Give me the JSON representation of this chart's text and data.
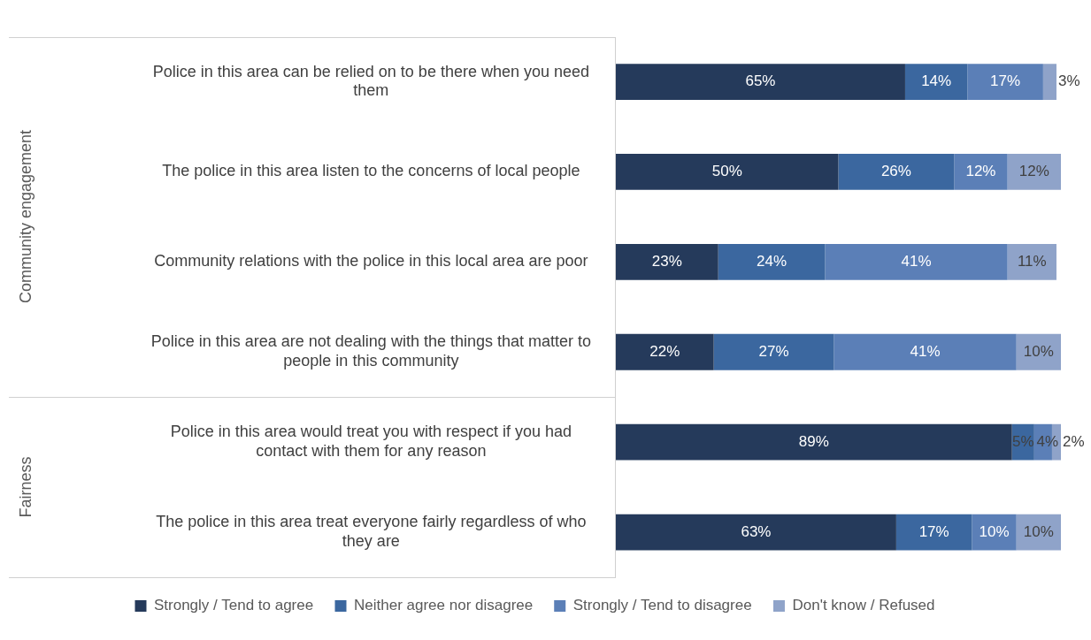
{
  "chart_data": {
    "type": "bar",
    "orientation": "horizontal",
    "stacked": true,
    "categories": [
      "Police in this area can be relied on to be there when you need them",
      "The police in this area listen to the concerns of local people",
      "Community relations with the police in this local area are poor",
      "Police in this area are not dealing with the things that matter to people in this community",
      "Police in this area would treat you with respect if you had contact with them for any reason",
      "The police in this area treat everyone fairly regardless of who they are"
    ],
    "series": [
      {
        "name": "Strongly / Tend to agree",
        "color": "#253a5b",
        "values": [
          65,
          50,
          23,
          22,
          89,
          63
        ],
        "value_labels": [
          "65%",
          "50%",
          "23%",
          "22%",
          "89%",
          "63%"
        ]
      },
      {
        "name": "Neither agree nor disagree",
        "color": "#3b679f",
        "values": [
          14,
          26,
          24,
          27,
          5,
          17
        ],
        "value_labels": [
          "14%",
          "26%",
          "24%",
          "27%",
          "5%",
          "17%"
        ]
      },
      {
        "name": "Strongly / Tend to disagree",
        "color": "#5b7fb7",
        "values": [
          17,
          12,
          41,
          41,
          4,
          10
        ],
        "value_labels": [
          "17%",
          "12%",
          "41%",
          "41%",
          "4%",
          "10%"
        ]
      },
      {
        "name": "Don't know / Refused",
        "color": "#8fa3c9",
        "values": [
          3,
          12,
          11,
          10,
          2,
          10
        ],
        "value_labels": [
          "3%",
          "12%",
          "11%",
          "10%",
          "2%",
          "10%"
        ]
      }
    ],
    "legend": "bottom",
    "tick_labels": "y",
    "annotations": [
      "Community engagement",
      "Fairness"
    ]
  }
}
